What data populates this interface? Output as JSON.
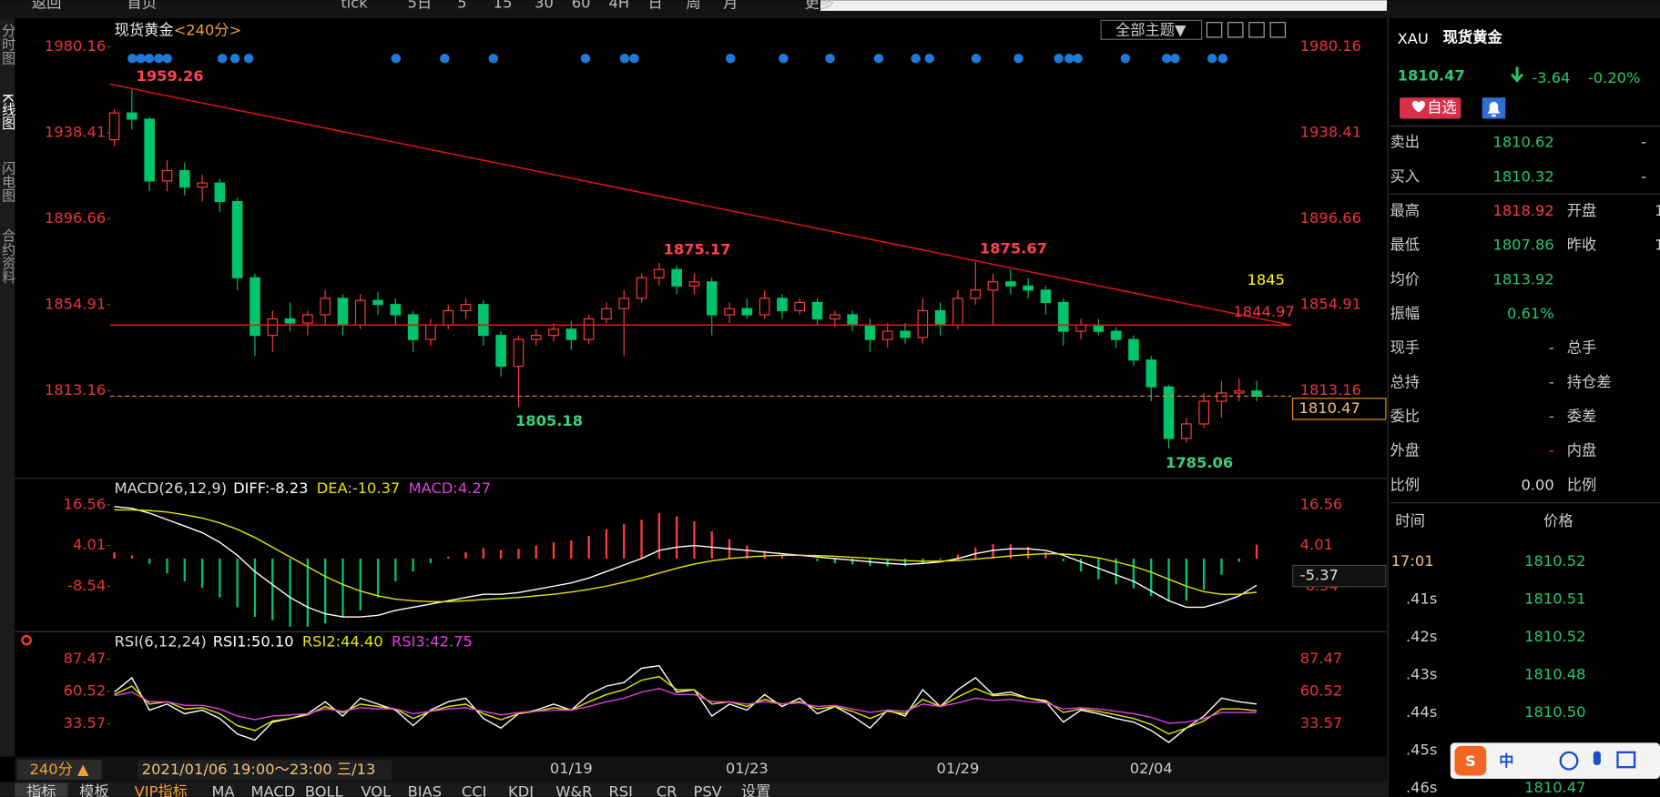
{
  "toolbar": [
    "返回",
    "首页",
    "tick",
    "5日",
    "5",
    "15",
    "30",
    "60",
    "4H",
    "日",
    "周",
    "月",
    "更多"
  ],
  "sidebar": [
    "分时图",
    "K线图",
    "闪电图",
    "合约资料"
  ],
  "chart_data": [
    {
      "type": "candlestick",
      "title": "现货黄金",
      "period": "<240分>",
      "theme_menu": "全部主题▼",
      "categories": [
        null,
        null,
        null,
        null,
        null,
        null,
        null,
        null,
        null,
        null,
        null,
        null,
        null,
        null,
        null,
        null,
        null,
        null,
        null,
        null,
        null,
        null,
        null,
        null,
        null,
        null,
        "01/19",
        null,
        null,
        null,
        null,
        null,
        null,
        null,
        null,
        null,
        "01/23",
        null,
        null,
        null,
        null,
        null,
        null,
        null,
        null,
        null,
        null,
        null,
        "01/29",
        null,
        null,
        null,
        null,
        null,
        null,
        null,
        null,
        null,
        null,
        "02/04",
        null,
        null,
        null,
        null,
        null,
        null
      ],
      "open": [
        1935,
        1948,
        1945,
        1915,
        1920,
        1912,
        1914,
        1905,
        1868,
        1840,
        1848,
        1846,
        1850,
        1858,
        1845,
        1857,
        1855,
        1850,
        1838,
        1845,
        1852,
        1855,
        1840,
        1825,
        1838,
        1840,
        1843,
        1838,
        1848,
        1853,
        1858,
        1868,
        1872,
        1864,
        1866,
        1850,
        1853,
        1850,
        1858,
        1852,
        1856,
        1848,
        1850,
        1845,
        1838,
        1842,
        1839,
        1852,
        1845,
        1858,
        1862,
        1866,
        1864,
        1862,
        1856,
        1842,
        1845,
        1842,
        1838,
        1828,
        1815,
        1790,
        1797,
        1808,
        1812,
        1813
      ],
      "high": [
        1950,
        1959.26,
        1946,
        1925,
        1924,
        1918,
        1916,
        1907,
        1870,
        1852,
        1856,
        1852,
        1862,
        1860,
        1860,
        1861,
        1858,
        1852,
        1848,
        1855,
        1858,
        1857,
        1842,
        1840,
        1843,
        1846,
        1847,
        1850,
        1856,
        1862,
        1870,
        1875.17,
        1874,
        1870,
        1868,
        1856,
        1858,
        1862,
        1860,
        1858,
        1858,
        1852,
        1852,
        1848,
        1846,
        1846,
        1858,
        1856,
        1862,
        1875.67,
        1870,
        1872,
        1868,
        1864,
        1858,
        1848,
        1848,
        1844,
        1840,
        1830,
        1816,
        1800,
        1812,
        1818,
        1819,
        1818
      ],
      "low": [
        1932,
        1940,
        1910,
        1910,
        1908,
        1905,
        1900,
        1862,
        1830,
        1832,
        1842,
        1840,
        1845,
        1840,
        1843,
        1850,
        1845,
        1832,
        1835,
        1843,
        1848,
        1835,
        1820,
        1805.18,
        1835,
        1837,
        1833,
        1836,
        1846,
        1830,
        1856,
        1864,
        1860,
        1860,
        1840,
        1846,
        1848,
        1848,
        1848,
        1850,
        1845,
        1844,
        1842,
        1832,
        1834,
        1836,
        1836,
        1840,
        1843,
        1855,
        1845,
        1860,
        1858,
        1850,
        1835,
        1838,
        1840,
        1834,
        1825,
        1808,
        1785.06,
        1788,
        1795,
        1800,
        1808,
        1808
      ],
      "close": [
        1948,
        1945,
        1915,
        1920,
        1912,
        1914,
        1905,
        1868,
        1840,
        1848,
        1846,
        1850,
        1858,
        1845,
        1857,
        1855,
        1850,
        1838,
        1845,
        1852,
        1855,
        1840,
        1825,
        1838,
        1840,
        1843,
        1838,
        1848,
        1853,
        1858,
        1868,
        1872,
        1864,
        1866,
        1850,
        1853,
        1850,
        1858,
        1852,
        1856,
        1848,
        1850,
        1845,
        1838,
        1842,
        1839,
        1852,
        1845,
        1858,
        1862,
        1866,
        1864,
        1862,
        1856,
        1842,
        1845,
        1842,
        1838,
        1828,
        1815,
        1790,
        1797,
        1808,
        1812,
        1813,
        1810.47
      ],
      "up_color": "#ff3b3b",
      "down_color": "#00c36b",
      "line_color": "#e01414",
      "ylim": [
        1771.6,
        1993.5
      ],
      "yticks": [
        1980.16,
        1938.41,
        1896.66,
        1854.91,
        1813.16
      ],
      "trend_line": [
        1962,
        1844.97
      ],
      "level_line": 1845
    },
    {
      "type": "macd",
      "title": "MACD(26,12,9)",
      "series": [
        {
          "label": "DIFF:-8.23",
          "color": "#ffffff",
          "values": [
            16,
            15.5,
            14,
            12,
            10,
            8,
            5,
            1,
            -4,
            -8,
            -12,
            -15,
            -17,
            -18,
            -18,
            -17.5,
            -16,
            -15,
            -14,
            -13,
            -12,
            -11,
            -11,
            -10.5,
            -9.5,
            -8.5,
            -7.5,
            -6,
            -4,
            -2,
            0,
            2.5,
            3.5,
            4,
            3.5,
            3,
            2.5,
            2,
            1.5,
            1,
            0.5,
            0,
            -0.5,
            -1,
            -1.5,
            -1.8,
            -1.5,
            -1,
            0,
            1.5,
            2.5,
            3,
            3,
            2.5,
            1,
            -1,
            -3,
            -5,
            -7,
            -10,
            -13,
            -15,
            -15,
            -13.5,
            -11.5,
            -8.23
          ]
        },
        {
          "label": "DEA:-10.37",
          "color": "#e6e600",
          "values": [
            15,
            15,
            14.8,
            14.3,
            13.5,
            12.5,
            11,
            9,
            6.5,
            3.5,
            0.5,
            -2.5,
            -5.5,
            -8,
            -10,
            -11.5,
            -12.5,
            -13,
            -13.3,
            -13.3,
            -13,
            -12.6,
            -12.3,
            -12,
            -11.5,
            -11,
            -10.3,
            -9.5,
            -8.5,
            -7.3,
            -6,
            -4.5,
            -3,
            -1.7,
            -0.7,
            0,
            0.5,
            0.8,
            1,
            1,
            0.9,
            0.7,
            0.4,
            0.1,
            -0.3,
            -0.6,
            -0.8,
            -0.8,
            -0.6,
            -0.2,
            0.3,
            0.8,
            1.2,
            1.5,
            1.4,
            1,
            0.2,
            -1,
            -2.4,
            -4.2,
            -6.4,
            -8.5,
            -10.2,
            -11,
            -11,
            -10.37
          ]
        },
        {
          "label": "MACD:4.27",
          "color": "#e040e0",
          "style": "histogram",
          "values": [
            2,
            1,
            -1.6,
            -4.6,
            -7,
            -9,
            -12,
            -15,
            -18,
            -19,
            -21,
            -21,
            -20,
            -18,
            -16,
            -12,
            -7,
            -4,
            -1.4,
            0.6,
            2,
            3.2,
            2.6,
            3,
            4,
            5,
            5.6,
            7,
            9,
            10.6,
            12,
            14,
            13,
            11.4,
            8.4,
            6,
            4,
            2.4,
            1,
            0,
            -0.8,
            -1.4,
            -1.8,
            -2.2,
            -2.4,
            -2.4,
            -1.4,
            -0.4,
            1.2,
            3.4,
            4.4,
            4.4,
            3.6,
            2,
            -0.8,
            -4,
            -6.4,
            -8,
            -9.2,
            -11.6,
            -13.2,
            -13,
            -9.6,
            -5,
            -1,
            4.27
          ]
        }
      ],
      "up_color": "#ff3b3b",
      "down_color": "#00c36b",
      "ylim": [
        -22.55,
        23.73
      ],
      "yticks": [
        16.56,
        4.01,
        -8.54
      ],
      "cursor_value": -5.37
    },
    {
      "type": "line",
      "title": "RSI(6,12,24)",
      "series": [
        {
          "label": "RSI1:50.10",
          "color": "#ffffff",
          "values": [
            60,
            72,
            45,
            50,
            42,
            45,
            38,
            25,
            20,
            35,
            38,
            42,
            52,
            40,
            55,
            50,
            45,
            32,
            45,
            52,
            55,
            38,
            30,
            42,
            45,
            50,
            45,
            58,
            65,
            68,
            80,
            82,
            60,
            62,
            40,
            50,
            45,
            58,
            48,
            55,
            42,
            48,
            40,
            30,
            45,
            40,
            62,
            48,
            62,
            72,
            58,
            60,
            55,
            52,
            35,
            45,
            42,
            38,
            35,
            28,
            18,
            30,
            40,
            55,
            52,
            50.1
          ]
        },
        {
          "label": "RSI2:44.40",
          "color": "#e6e600",
          "values": [
            58,
            65,
            50,
            52,
            46,
            47,
            42,
            32,
            28,
            36,
            38,
            41,
            48,
            43,
            50,
            48,
            46,
            38,
            44,
            48,
            50,
            42,
            37,
            42,
            44,
            47,
            45,
            52,
            58,
            62,
            70,
            73,
            62,
            62,
            50,
            52,
            48,
            54,
            50,
            52,
            46,
            48,
            44,
            38,
            44,
            42,
            54,
            48,
            56,
            63,
            57,
            58,
            55,
            53,
            43,
            46,
            44,
            41,
            38,
            33,
            25,
            30,
            36,
            46,
            46,
            44.4
          ]
        },
        {
          "label": "RSI3:42.75",
          "color": "#e040e0",
          "values": [
            57,
            60,
            52,
            52,
            49,
            49,
            46,
            40,
            37,
            40,
            41,
            42,
            46,
            44,
            47,
            46,
            46,
            42,
            44,
            46,
            47,
            44,
            41,
            43,
            44,
            45,
            45,
            48,
            52,
            55,
            60,
            63,
            58,
            58,
            52,
            52,
            50,
            52,
            50,
            51,
            48,
            49,
            46,
            43,
            45,
            44,
            50,
            48,
            51,
            55,
            53,
            54,
            52,
            51,
            46,
            47,
            46,
            44,
            42,
            39,
            34,
            35,
            38,
            43,
            43,
            42.75
          ]
        }
      ],
      "ylim": [
        6.2,
        107.8
      ],
      "yticks": [
        87.47,
        60.52,
        33.57
      ]
    }
  ],
  "footer": {
    "period_button": "240分 ▲",
    "cursor_time": "2021/01/06 19:00～23:00 三/13",
    "tabs": [
      "指标",
      "模板",
      "VIP指标",
      "MA",
      "MACD",
      "BOLL",
      "VOL",
      "BIAS",
      "CCI",
      "KDJ",
      "W&R",
      "RSI",
      "CR",
      "PSV",
      "设置"
    ]
  },
  "quote": {
    "code": "XAU",
    "name": "现货黄金",
    "price": "1810.47",
    "change": "-3.64",
    "change_pct": "-0.20%",
    "fav": "自选",
    "rows": [
      {
        "label": "卖出",
        "value": "1810.62",
        "color": "#28c76f",
        "value2": "-"
      },
      {
        "label": "买入",
        "value": "1810.32",
        "color": "#28c76f",
        "value2": "-"
      },
      {
        "label": "最高",
        "value": "1818.92",
        "color": "#ff3b3b",
        "label2": "开盘",
        "value2": "1"
      },
      {
        "label": "最低",
        "value": "1807.86",
        "color": "#28c76f",
        "label2": "昨收",
        "value2": "1"
      },
      {
        "label": "均价",
        "value": "1813.92",
        "color": "#28c76f"
      },
      {
        "label": "振幅",
        "value": "0.61%",
        "color": "#28c76f"
      },
      {
        "label": "现手",
        "value": "-",
        "color": "#bbbbbb",
        "label2": "总手"
      },
      {
        "label": "总持",
        "value": "-",
        "color": "#bbbbbb",
        "label2": "持仓差"
      },
      {
        "label": "委比",
        "value": "-",
        "color": "#bbbbbb",
        "label2": "委差"
      },
      {
        "label": "外盘",
        "value": "-",
        "color": "#ff3b3b",
        "label2": "内盘"
      },
      {
        "label": "比例",
        "value": "0.00",
        "color": "#dddddd",
        "label2": "比例"
      }
    ],
    "ticks_header": [
      "时间",
      "价格"
    ],
    "ticks": [
      [
        "17:01",
        "1810.52"
      ],
      [
        ".41s",
        "1810.51"
      ],
      [
        ".42s",
        "1810.52"
      ],
      [
        ".43s",
        "1810.48"
      ],
      [
        ".44s",
        "1810.50"
      ],
      [
        ".45s"
      ],
      [
        ".46s",
        "1810.47"
      ]
    ]
  },
  "ime": {
    "logo": "S",
    "mode": "中"
  }
}
